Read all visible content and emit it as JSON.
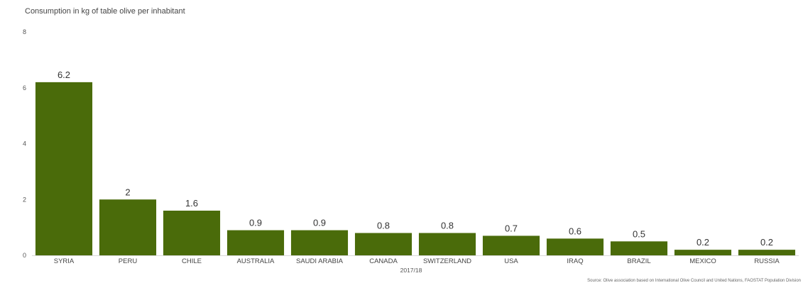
{
  "chart_data": {
    "type": "bar",
    "title": "Consumption in kg of table olive per inhabitant",
    "xlabel": "2017/18",
    "ylabel": "",
    "categories": [
      "SYRIA",
      "PERU",
      "CHILE",
      "AUSTRALIA",
      "SAUDI ARABIA",
      "CANADA",
      "SWITZERLAND",
      "USA",
      "IRAQ",
      "BRAZIL",
      "MEXICO",
      "RUSSIA"
    ],
    "values": [
      6.2,
      2,
      1.6,
      0.9,
      0.9,
      0.8,
      0.8,
      0.7,
      0.6,
      0.5,
      0.2,
      0.2
    ],
    "data_labels": [
      "6.2",
      "2",
      "1.6",
      "0.9",
      "0.9",
      "0.8",
      "0.8",
      "0.7",
      "0.6",
      "0.5",
      "0.2",
      "0.2"
    ],
    "ylim": [
      0,
      8
    ],
    "yticks": [
      0,
      2,
      4,
      6,
      8
    ],
    "grid": false,
    "legend": "none",
    "bar_color": "#4a6b0a",
    "source": "Source: Olive association based on International Olive Council and United Nations, FAOSTAT Population Division"
  }
}
